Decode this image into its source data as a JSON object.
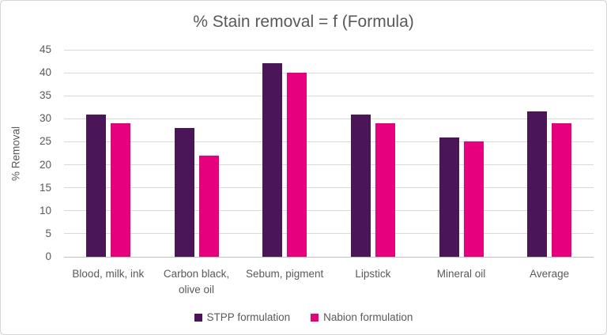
{
  "title": "% Stain removal = f (Formula)",
  "chart_data": {
    "type": "bar",
    "title": "% Stain removal = f (Formula)",
    "categories": [
      "Blood, milk, ink",
      "Carbon black, olive oil",
      "Sebum, pigment",
      "Lipstick",
      "Mineral oil",
      "Average"
    ],
    "series": [
      {
        "name": "STPP formulation",
        "color": "#4B1658",
        "values": [
          31,
          28,
          42,
          31,
          26,
          31.6
        ]
      },
      {
        "name": "Nabion formulation",
        "color": "#E6007E",
        "values": [
          29,
          22,
          40,
          29,
          25,
          29
        ]
      }
    ],
    "xlabel": "",
    "ylabel": "% Removal",
    "ylim": [
      0,
      45
    ],
    "ytick_step": 5,
    "grid": true,
    "legend_position": "bottom"
  },
  "colors": {
    "text": "#595959",
    "grid": "#D9D9D9",
    "axis": "#BFBFBF",
    "border": "#D6D6D6",
    "background": "#FFFFFF"
  }
}
